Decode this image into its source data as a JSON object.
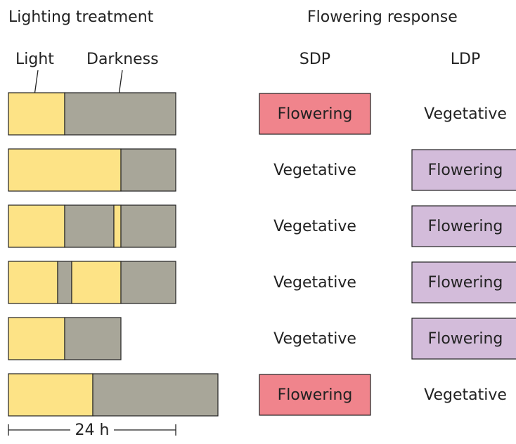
{
  "header": {
    "left": "Lighting treatment",
    "right": "Flowering response"
  },
  "labels": {
    "light": "Light",
    "darkness": "Darkness"
  },
  "columns": [
    "SDP",
    "LDP"
  ],
  "rows": [
    [
      "Flowering",
      "Vegetative"
    ],
    [
      "Vegetative",
      "Flowering"
    ],
    [
      "Vegetative",
      "Flowering"
    ],
    [
      "Vegetative",
      "Flowering"
    ],
    [
      "Vegetative",
      "Flowering"
    ],
    [
      "Flowering",
      "Vegetative"
    ]
  ],
  "scale": "24 h"
}
